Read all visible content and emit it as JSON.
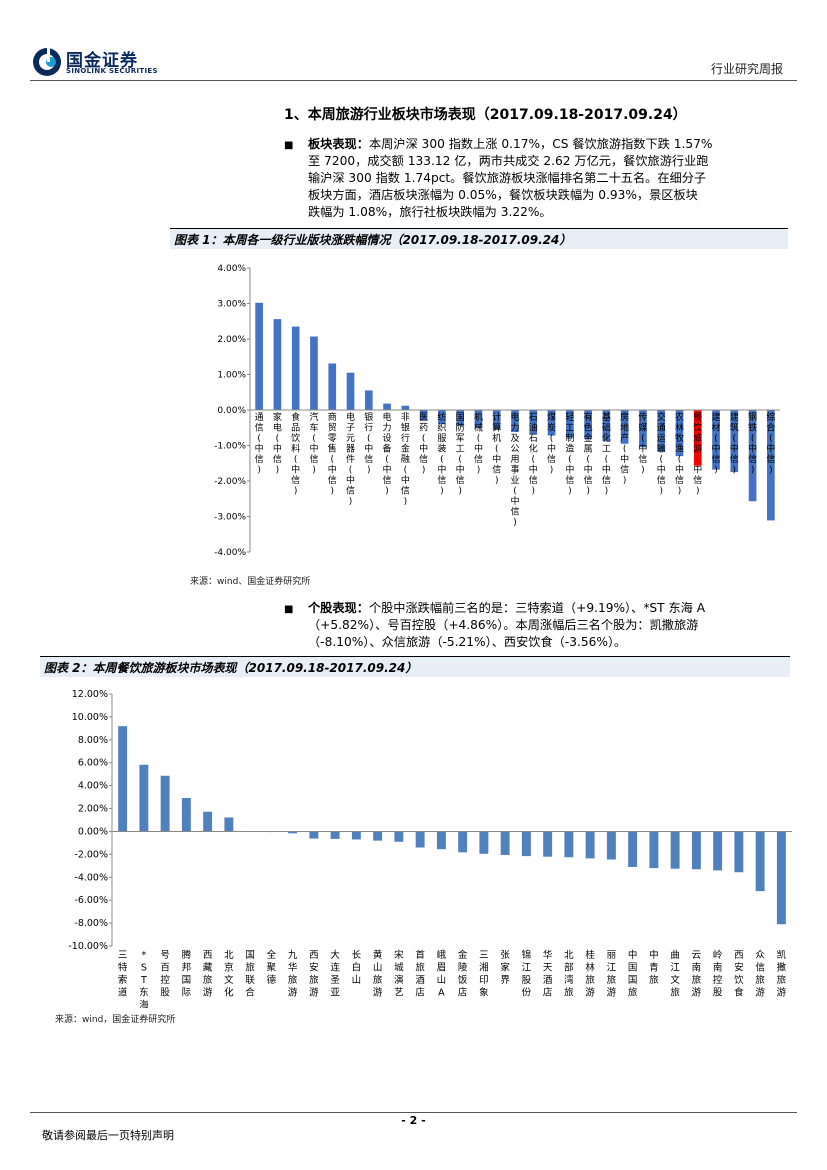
{
  "header": {
    "logo_cn": "国金证券",
    "logo_en": "SINOLINK SECURITIES",
    "report_type": "行业研究周报"
  },
  "section": {
    "title": "1、本周旅游行业板块市场表现（2017.09.18-2017.09.24）"
  },
  "para1": {
    "bold": "板块表现：",
    "text": "本周沪深 300 指数上涨 0.17%，CS 餐饮旅游指数下跌 1.57% 至 7200，成交额 133.12 亿，两市共成交 2.62 万亿元，餐饮旅游行业跑输沪深 300 指数 1.74pct。餐饮旅游板块涨幅排名第二十五名。在细分子板块方面，酒店板块涨幅为 0.05%，餐饮板块跌幅为 0.93%，景区板块跌幅为 1.08%，旅行社板块跌幅为 3.22%。",
    "lines": [
      "本周沪深 300 指数上涨 0.17%，CS 餐饮旅游指数下跌 1.57%",
      "至 7200，成交额 133.12 亿，两市共成交 2.62 万亿元，餐饮旅游行业跑",
      "输沪深 300 指数 1.74pct。餐饮旅游板块涨幅排名第二十五名。在细分子",
      "板块方面，酒店板块涨幅为 0.05%，餐饮板块跌幅为 0.93%，景区板块",
      "跌幅为 1.08%，旅行社板块跌幅为 3.22%。"
    ]
  },
  "para2": {
    "bold": "个股表现：",
    "lines": [
      "个股中涨跌幅前三名的是：三特索道（+9.19%）、*ST 东海 A",
      "（+5.82%）、号百控股（+4.86%）。本周涨幅后三名个股为：凯撒旅游",
      "（-8.10%）、众信旅游（-5.21%）、西安饮食（-3.56%）。"
    ]
  },
  "figure1": {
    "title": "图表 1：本周各一级行业版块涨跌幅情况（2017.09.18-2017.09.24）",
    "source": "来源：wind、国金证券研究所"
  },
  "figure2": {
    "title": "图表 2：本周餐饮旅游板块市场表现（2017.09.18-2017.09.24）",
    "source": "来源：wind，国金证券研究所"
  },
  "chart_data": [
    {
      "type": "bar",
      "title": "本周各一级行业版块涨跌幅情况（2017.09.18-2017.09.24）",
      "ylim": [
        -4,
        4
      ],
      "yticks": [
        "4.00%",
        "3.00%",
        "2.00%",
        "1.00%",
        "0.00%",
        "-1.00%",
        "-2.00%",
        "-3.00%",
        "-4.00%"
      ],
      "categories": [
        "通信(中信)",
        "家电(中信)",
        "食品饮料(中信)",
        "汽车(中信)",
        "商贸零售(中信)",
        "电子元器件(中信)",
        "银行(中信)",
        "电力设备(中信)",
        "非银行金融(中信)",
        "医药(中信)",
        "纺织服装(中信)",
        "国防军工(中信)",
        "机械(中信)",
        "计算机(中信)",
        "电力及公用事业(中信)",
        "石油石化(中信)",
        "煤炭(中信)",
        "轻工制造(中信)",
        "有色金属(中信)",
        "基础化工(中信)",
        "房地产(中信)",
        "传媒(中信)",
        "交通运输(中信)",
        "农林牧渔(中信)",
        "餐饮旅游(中信)",
        "建材(中信)",
        "建筑(中信)",
        "钢铁(中信)",
        "综合(中信)"
      ],
      "values": [
        3.02,
        2.56,
        2.35,
        2.07,
        1.31,
        1.05,
        0.55,
        0.18,
        0.12,
        -0.3,
        -0.4,
        -0.45,
        -0.5,
        -0.55,
        -0.62,
        -0.68,
        -0.72,
        -0.78,
        -0.82,
        -0.88,
        -0.95,
        -1.05,
        -1.18,
        -1.3,
        -1.57,
        -1.68,
        -1.75,
        -2.57,
        -3.11
      ],
      "highlight_index": 24,
      "bar_color": "#4472c4",
      "highlight_color": "#ff0000"
    },
    {
      "type": "bar",
      "title": "本周餐饮旅游板块市场表现（2017.09.18-2017.09.24）",
      "ylim": [
        -10,
        12
      ],
      "yticks": [
        "12.00%",
        "10.00%",
        "8.00%",
        "6.00%",
        "4.00%",
        "2.00%",
        "0.00%",
        "-2.00%",
        "-4.00%",
        "-6.00%",
        "-8.00%",
        "-10.00%"
      ],
      "categories": [
        "三特索道",
        "*ST东海A",
        "号百控股",
        "腾邦国际",
        "西藏旅游",
        "北京文化",
        "国旅联合",
        "全聚德",
        "九华旅游",
        "西安旅游",
        "大连圣亚",
        "长白山",
        "黄山旅游",
        "宋城演艺",
        "首旅酒店",
        "峨眉山A",
        "金陵饭店",
        "三湘印象",
        "张家界",
        "锦江股份",
        "华天酒店",
        "北部湾旅",
        "桂林旅游",
        "丽江旅游",
        "中国国旅",
        "中青旅",
        "曲江文旅",
        "云南旅游",
        "岭南控股",
        "西安饮食",
        "众信旅游",
        "凯撒旅游"
      ],
      "values": [
        9.19,
        5.82,
        4.86,
        2.92,
        1.72,
        1.22,
        0.02,
        0.0,
        -0.16,
        -0.62,
        -0.65,
        -0.7,
        -0.8,
        -0.9,
        -1.4,
        -1.55,
        -1.82,
        -1.95,
        -2.05,
        -2.15,
        -2.2,
        -2.25,
        -2.35,
        -2.45,
        -3.1,
        -3.2,
        -3.25,
        -3.3,
        -3.4,
        -3.56,
        -5.21,
        -8.1
      ],
      "bar_color": "#4f81bd"
    }
  ],
  "footer": {
    "page_number": "- 2 -",
    "disclaimer": "敬请参阅最后一页特别声明"
  }
}
